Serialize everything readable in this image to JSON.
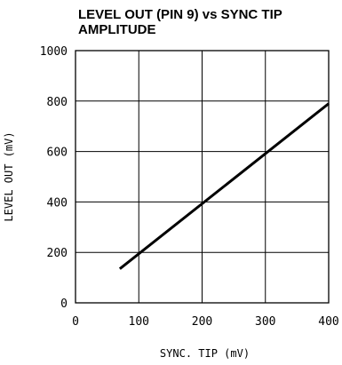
{
  "chart_data": {
    "type": "line",
    "title_line1": "LEVEL OUT (PIN 9) vs SYNC TIP",
    "title_line2": "AMPLITUDE",
    "xlabel": "SYNC. TIP (mV)",
    "ylabel": "LEVEL OUT (mV)",
    "xlim": [
      0,
      400
    ],
    "ylim": [
      0,
      1000
    ],
    "xticks": [
      0,
      100,
      200,
      300,
      400
    ],
    "yticks": [
      0,
      200,
      400,
      600,
      800,
      1000
    ],
    "grid": true,
    "series": [
      {
        "x": [
          70,
          400
        ],
        "y": [
          135,
          790
        ]
      }
    ],
    "colors": {
      "line": "#000000",
      "grid": "#000000"
    }
  }
}
